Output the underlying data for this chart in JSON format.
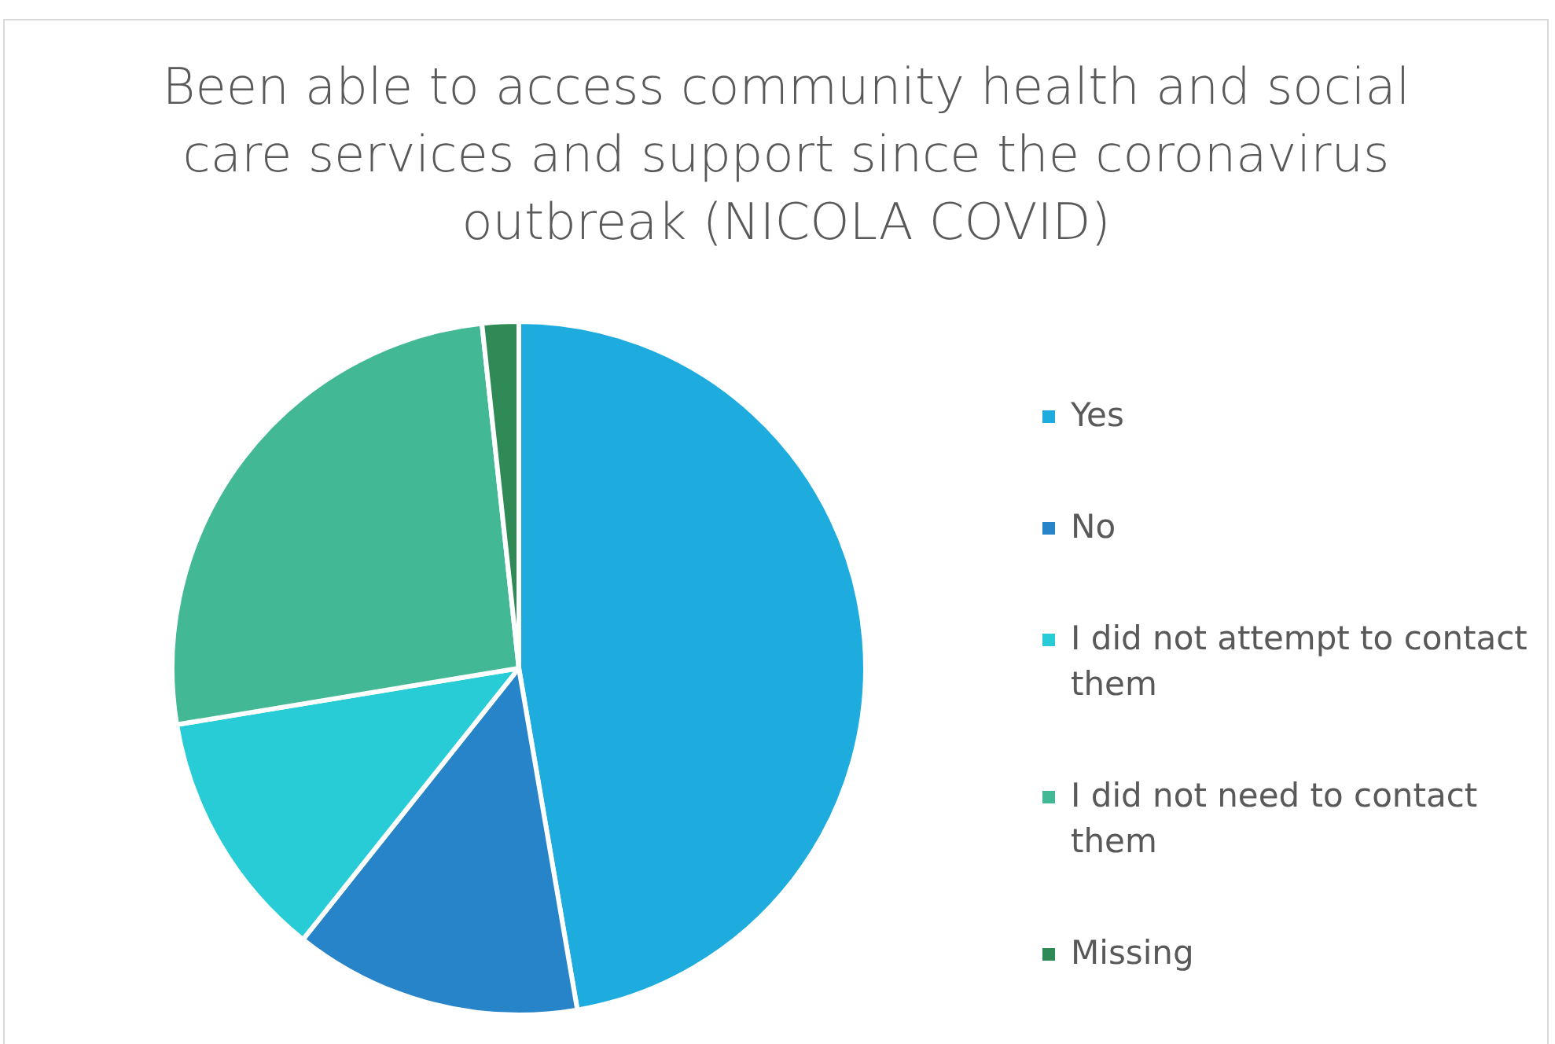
{
  "chart_data": {
    "type": "pie",
    "title": "Been able to access community health and social care services and support since the coronavirus outbreak (NICOLA COVID)",
    "categories": [
      "Yes",
      "No",
      "I did not attempt to contact them",
      "I did not need to contact them",
      "Missing"
    ],
    "values": [
      47.3,
      13.4,
      11.7,
      25.9,
      1.7
    ],
    "colors": [
      "#1eacdf",
      "#2784c8",
      "#27ccd6",
      "#42b994",
      "#2f8a55"
    ],
    "legend": "right"
  }
}
